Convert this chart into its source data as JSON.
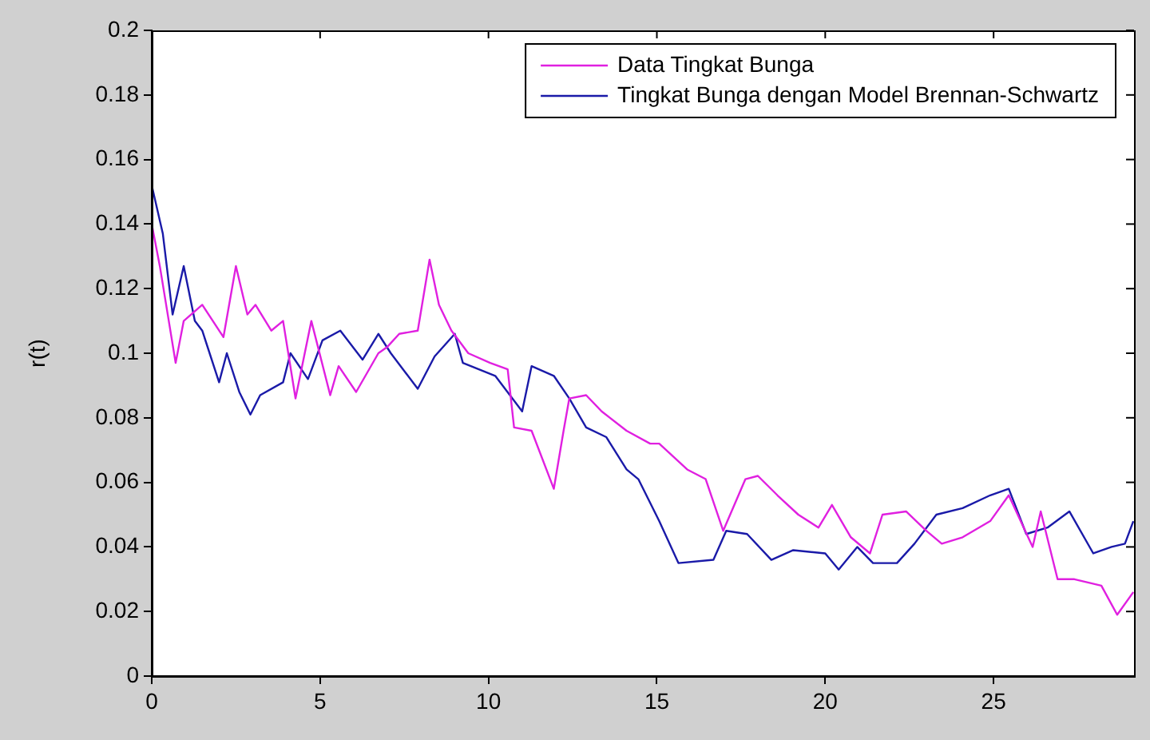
{
  "chart_data": {
    "type": "line",
    "ylabel": "r(t)",
    "xlim": [
      0,
      29.17
    ],
    "xticks": [
      0,
      5,
      10,
      15,
      20,
      25
    ],
    "ylim": [
      0,
      0.2
    ],
    "yticks": [
      0,
      0.02,
      0.04,
      0.06,
      0.08,
      0.1,
      0.12,
      0.14,
      0.16,
      0.18,
      0.2
    ],
    "grid": false,
    "legend": "top right",
    "marker": "none",
    "line_style": "solid",
    "series": [
      {
        "name": "Data Tingkat Bunga",
        "color": "#e020e0",
        "x": [
          0,
          0.24,
          0.71,
          0.95,
          1.5,
          2.13,
          2.5,
          2.84,
          3.08,
          3.55,
          3.9,
          4.27,
          4.74,
          5.3,
          5.55,
          6.07,
          6.73,
          7.0,
          7.35,
          7.9,
          8.25,
          8.53,
          8.9,
          9.4,
          10.05,
          10.57,
          10.76,
          11.28,
          11.94,
          12.23,
          12.4,
          12.9,
          13.36,
          14.1,
          14.8,
          15.07,
          15.9,
          16.45,
          16.97,
          17.63,
          18.0,
          18.58,
          19.2,
          19.8,
          20.2,
          20.76,
          21.33,
          21.7,
          22.4,
          23.0,
          23.46,
          24.08,
          24.9,
          25.45,
          26.16,
          26.4,
          26.9,
          27.4,
          28.2,
          28.67,
          29.15
        ],
        "values": [
          0.14,
          0.127,
          0.097,
          0.11,
          0.115,
          0.105,
          0.127,
          0.112,
          0.115,
          0.107,
          0.11,
          0.086,
          0.11,
          0.087,
          0.096,
          0.088,
          0.1,
          0.102,
          0.106,
          0.107,
          0.129,
          0.115,
          0.107,
          0.1,
          0.097,
          0.095,
          0.077,
          0.076,
          0.058,
          0.076,
          0.086,
          0.087,
          0.082,
          0.076,
          0.072,
          0.072,
          0.064,
          0.061,
          0.045,
          0.061,
          0.062,
          0.056,
          0.05,
          0.046,
          0.053,
          0.043,
          0.038,
          0.05,
          0.051,
          0.045,
          0.041,
          0.043,
          0.048,
          0.056,
          0.04,
          0.051,
          0.03,
          0.03,
          0.028,
          0.019,
          0.026
        ]
      },
      {
        "name": "Tingkat Bunga dengan Model Brennan-Schwartz",
        "color": "#1a1aa8",
        "x": [
          0,
          0.33,
          0.62,
          0.95,
          1.28,
          1.5,
          2.0,
          2.23,
          2.6,
          2.93,
          3.22,
          3.9,
          4.12,
          4.64,
          5.07,
          5.6,
          6.26,
          6.73,
          7.1,
          7.9,
          8.4,
          9.0,
          9.24,
          10.2,
          11.0,
          11.28,
          11.94,
          12.4,
          12.9,
          13.5,
          14.1,
          14.45,
          15.07,
          15.64,
          16.68,
          17.06,
          17.68,
          18.4,
          19.05,
          20.0,
          20.4,
          20.95,
          21.42,
          22.13,
          22.65,
          23.3,
          24.08,
          24.9,
          25.45,
          25.97,
          26.6,
          27.25,
          27.96,
          28.5,
          28.9,
          29.15
        ],
        "values": [
          0.152,
          0.137,
          0.112,
          0.127,
          0.11,
          0.107,
          0.091,
          0.1,
          0.088,
          0.081,
          0.087,
          0.091,
          0.1,
          0.092,
          0.104,
          0.107,
          0.098,
          0.106,
          0.1,
          0.089,
          0.099,
          0.106,
          0.097,
          0.093,
          0.082,
          0.096,
          0.093,
          0.086,
          0.077,
          0.074,
          0.064,
          0.061,
          0.048,
          0.035,
          0.036,
          0.045,
          0.044,
          0.036,
          0.039,
          0.038,
          0.033,
          0.04,
          0.035,
          0.035,
          0.041,
          0.05,
          0.052,
          0.056,
          0.058,
          0.044,
          0.046,
          0.051,
          0.038,
          0.04,
          0.041,
          0.048
        ]
      }
    ]
  }
}
